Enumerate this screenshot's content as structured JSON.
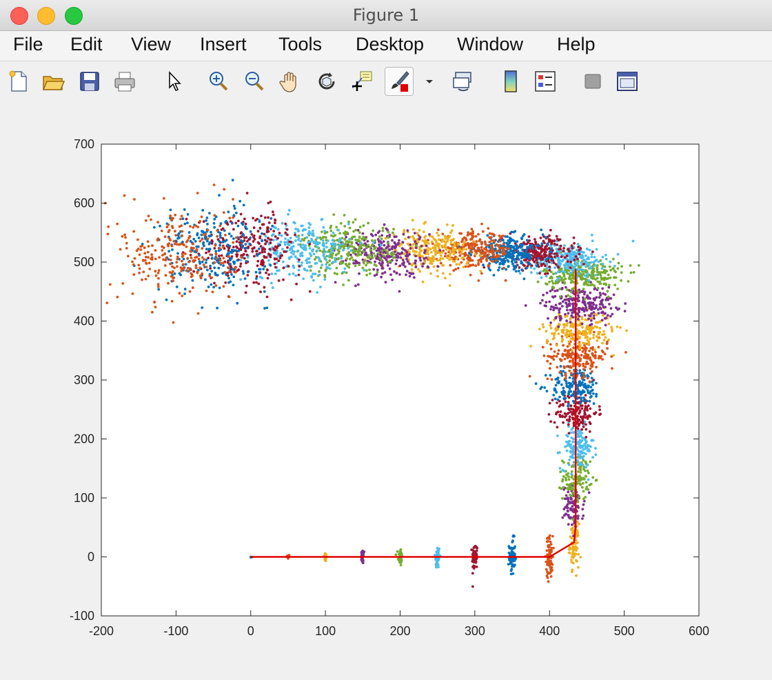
{
  "window": {
    "title": "Figure 1"
  },
  "menu": {
    "items": [
      "File",
      "Edit",
      "View",
      "Insert",
      "Tools",
      "Desktop",
      "Window",
      "Help"
    ]
  },
  "toolbar": {
    "icons": [
      "new-figure-icon",
      "open-file-icon",
      "save-icon",
      "print-icon",
      "pointer-icon",
      "zoom-in-icon",
      "zoom-out-icon",
      "pan-hand-icon",
      "rotate-3d-icon",
      "data-cursor-icon",
      "brush-icon",
      "brush-dropdown-icon",
      "link-plot-icon",
      "colorbar-icon",
      "legend-icon",
      "hide-plot-tools-icon",
      "show-plot-tools-icon"
    ]
  },
  "chart_data": {
    "type": "scatter",
    "title": "",
    "xlabel": "",
    "ylabel": "",
    "xlim": [
      -200,
      600
    ],
    "ylim": [
      -100,
      700
    ],
    "xticks": [
      -200,
      -100,
      0,
      100,
      200,
      300,
      400,
      500,
      600
    ],
    "yticks": [
      -100,
      0,
      100,
      200,
      300,
      400,
      500,
      600,
      700
    ],
    "grid": false,
    "legend": "none",
    "colors": [
      "#0072BD",
      "#D95319",
      "#EDB120",
      "#7E2F8E",
      "#77AC30",
      "#4DBEEE",
      "#A2142F"
    ],
    "line": {
      "color": "#e00000",
      "points": [
        [
          0,
          0
        ],
        [
          50,
          0
        ],
        [
          100,
          0
        ],
        [
          150,
          0
        ],
        [
          200,
          0
        ],
        [
          250,
          0
        ],
        [
          300,
          0
        ],
        [
          350,
          0
        ],
        [
          400,
          0
        ],
        [
          433,
          25
        ],
        [
          435,
          55
        ],
        [
          435,
          95
        ],
        [
          435,
          135
        ],
        [
          435,
          170
        ],
        [
          435,
          215
        ],
        [
          435,
          255
        ],
        [
          435,
          300
        ],
        [
          435,
          335
        ],
        [
          435,
          375
        ],
        [
          435,
          415
        ],
        [
          435,
          455
        ],
        [
          435,
          488
        ]
      ]
    },
    "clusters": [
      {
        "x": 0,
        "y": 0,
        "sx": 0.5,
        "sy": 0.5,
        "n": 4,
        "color": "#0072BD"
      },
      {
        "x": 50,
        "y": 0,
        "sx": 1,
        "sy": 2,
        "n": 12,
        "color": "#D95319"
      },
      {
        "x": 100,
        "y": 0,
        "sx": 1,
        "sy": 4,
        "n": 20,
        "color": "#EDB120"
      },
      {
        "x": 150,
        "y": 0,
        "sx": 1.2,
        "sy": 6,
        "n": 30,
        "color": "#7E2F8E"
      },
      {
        "x": 200,
        "y": 0,
        "sx": 1.4,
        "sy": 8,
        "n": 40,
        "color": "#77AC30"
      },
      {
        "x": 250,
        "y": 0,
        "sx": 1.6,
        "sy": 10,
        "n": 50,
        "color": "#4DBEEE"
      },
      {
        "x": 300,
        "y": 0,
        "sx": 1.8,
        "sy": 12,
        "n": 60,
        "color": "#A2142F"
      },
      {
        "x": 350,
        "y": 0,
        "sx": 2,
        "sy": 15,
        "n": 70,
        "color": "#0072BD"
      },
      {
        "x": 400,
        "y": 0,
        "sx": 2.2,
        "sy": 18,
        "n": 80,
        "color": "#D95319"
      },
      {
        "x": 433,
        "y": 20,
        "sx": 3,
        "sy": 18,
        "n": 90,
        "color": "#EDB120"
      },
      {
        "x": 432,
        "y": 85,
        "sx": 7,
        "sy": 18,
        "n": 100,
        "color": "#7E2F8E"
      },
      {
        "x": 436,
        "y": 133,
        "sx": 9,
        "sy": 18,
        "n": 120,
        "color": "#77AC30"
      },
      {
        "x": 437,
        "y": 185,
        "sx": 11,
        "sy": 18,
        "n": 140,
        "color": "#4DBEEE"
      },
      {
        "x": 436,
        "y": 245,
        "sx": 14,
        "sy": 16,
        "n": 160,
        "color": "#A2142F"
      },
      {
        "x": 435,
        "y": 290,
        "sx": 17,
        "sy": 16,
        "n": 180,
        "color": "#0072BD"
      },
      {
        "x": 438,
        "y": 340,
        "sx": 20,
        "sy": 16,
        "n": 200,
        "color": "#D95319"
      },
      {
        "x": 440,
        "y": 385,
        "sx": 22,
        "sy": 15,
        "n": 220,
        "color": "#EDB120"
      },
      {
        "x": 440,
        "y": 430,
        "sx": 24,
        "sy": 15,
        "n": 240,
        "color": "#7E2F8E"
      },
      {
        "x": 445,
        "y": 478,
        "sx": 26,
        "sy": 14,
        "n": 260,
        "color": "#77AC30"
      },
      {
        "x": 425,
        "y": 505,
        "sx": 24,
        "sy": 14,
        "n": 260,
        "color": "#4DBEEE"
      },
      {
        "x": 385,
        "y": 515,
        "sx": 24,
        "sy": 14,
        "n": 260,
        "color": "#A2142F"
      },
      {
        "x": 345,
        "y": 515,
        "sx": 24,
        "sy": 14,
        "n": 260,
        "color": "#0072BD"
      },
      {
        "x": 300,
        "y": 520,
        "sx": 25,
        "sy": 15,
        "n": 260,
        "color": "#D95319"
      },
      {
        "x": 240,
        "y": 520,
        "sx": 26,
        "sy": 17,
        "n": 260,
        "color": "#EDB120"
      },
      {
        "x": 180,
        "y": 515,
        "sx": 28,
        "sy": 20,
        "n": 260,
        "color": "#7E2F8E"
      },
      {
        "x": 130,
        "y": 520,
        "sx": 30,
        "sy": 22,
        "n": 260,
        "color": "#77AC30"
      },
      {
        "x": 70,
        "y": 520,
        "sx": 32,
        "sy": 25,
        "n": 260,
        "color": "#4DBEEE"
      },
      {
        "x": 0,
        "y": 525,
        "sx": 34,
        "sy": 30,
        "n": 260,
        "color": "#A2142F"
      },
      {
        "x": -50,
        "y": 520,
        "sx": 36,
        "sy": 36,
        "n": 260,
        "color": "#0072BD"
      },
      {
        "x": -100,
        "y": 515,
        "sx": 38,
        "sy": 42,
        "n": 260,
        "color": "#D95319"
      }
    ]
  }
}
